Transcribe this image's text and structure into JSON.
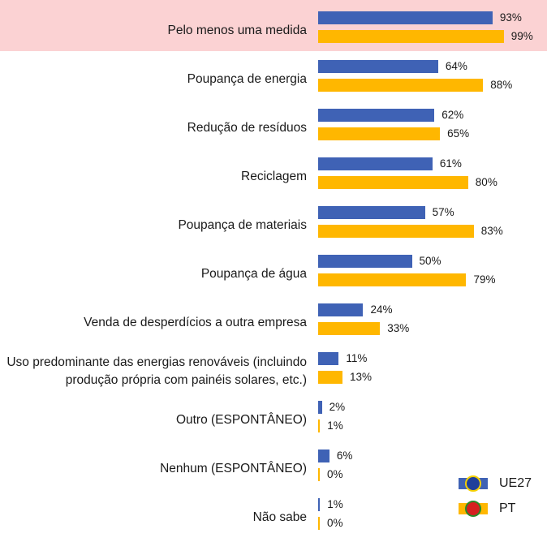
{
  "chart_data": {
    "type": "bar",
    "orientation": "horizontal",
    "categories": [
      "Pelo menos uma medida",
      "Poupança de energia",
      "Redução de resíduos",
      "Reciclagem",
      "Poupança de materiais",
      "Poupança de água",
      "Venda de desperdícios a outra empresa",
      "Uso predominante das energias renováveis (incluindo produção própria com painéis solares, etc.)",
      "Outro (ESPONTÂNEO)",
      "Nenhum (ESPONTÂNEO)",
      "Não sabe"
    ],
    "series": [
      {
        "name": "UE27",
        "color": "#3f62b5",
        "values": [
          93,
          64,
          62,
          61,
          57,
          50,
          24,
          11,
          2,
          6,
          1
        ],
        "value_labels": [
          "93%",
          "64%",
          "62%",
          "61%",
          "57%",
          "50%",
          "24%",
          "11%",
          "2%",
          "6%",
          "1%"
        ]
      },
      {
        "name": "PT",
        "color": "#ffb700",
        "values": [
          99,
          88,
          65,
          80,
          83,
          79,
          33,
          13,
          1,
          0,
          0
        ],
        "value_labels": [
          "99%",
          "88%",
          "65%",
          "80%",
          "83%",
          "79%",
          "33%",
          "13%",
          "1%",
          "0%",
          "0%"
        ]
      }
    ],
    "legend": "bottom-right"
  }
}
